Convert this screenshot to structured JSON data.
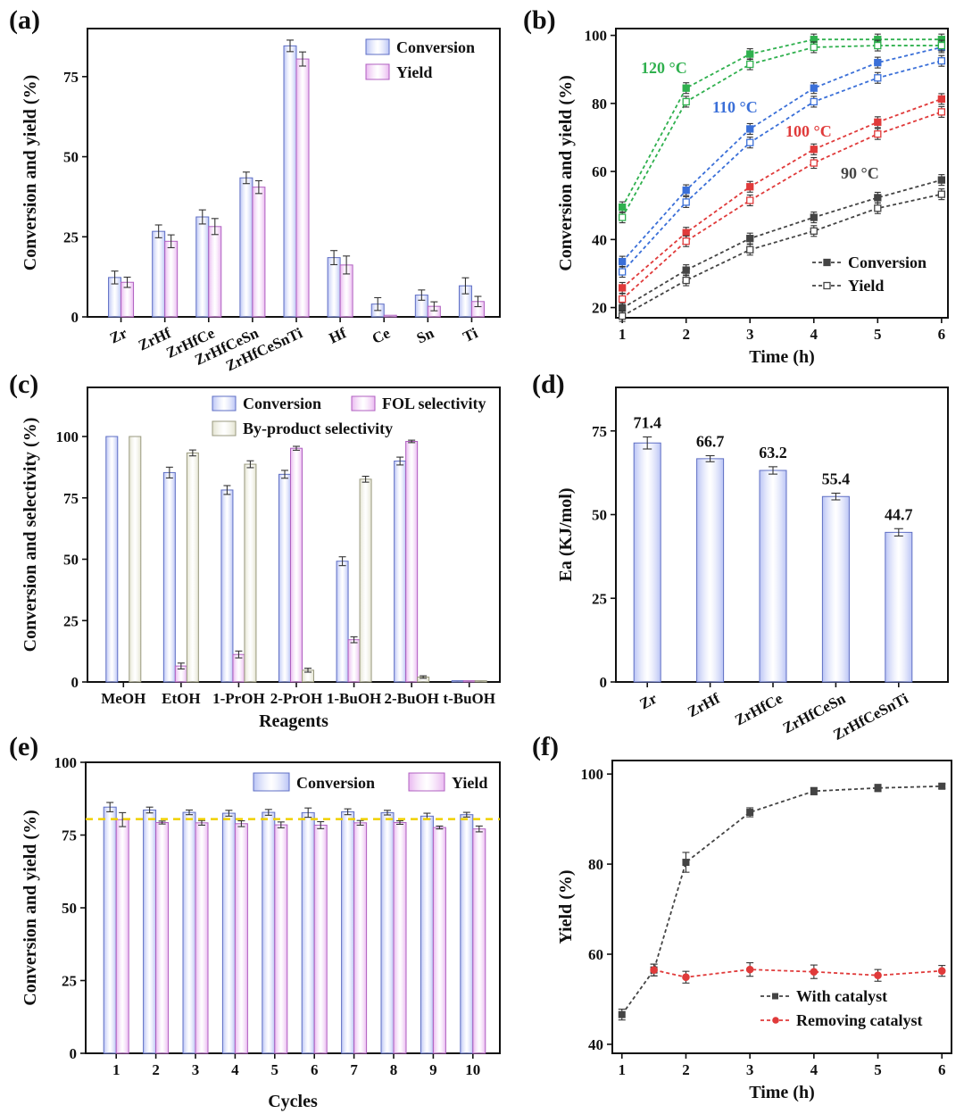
{
  "figure": {
    "panel_labels": [
      "(a)",
      "(b)",
      "(c)",
      "(d)",
      "(e)",
      "(f)"
    ],
    "colors": {
      "conversion_fill": "#b9c3f5",
      "conversion_stroke": "#5f6fc4",
      "yield_fill": "#e9b7f0",
      "yield_stroke": "#b060c0",
      "byproduct_fill": "#e3e3cf",
      "byproduct_stroke": "#9a9a80",
      "t90": "#444444",
      "t100": "#e03a3a",
      "t110": "#3a6fd8",
      "t120": "#2fb04e",
      "dashed_ref": "#f0d000"
    }
  },
  "chart_data": [
    {
      "panel": "(a)",
      "type": "bar",
      "categories": [
        "Zr",
        "ZrHf",
        "ZrHfCe",
        "ZrHfCeSn",
        "ZrHfCeSnTi",
        "Hf",
        "Ce",
        "Sn",
        "Ti"
      ],
      "series": [
        {
          "name": "Conversion",
          "values": [
            12.3,
            26.7,
            31.2,
            43.4,
            84.6,
            18.5,
            4.0,
            6.8,
            9.7
          ],
          "errors": [
            2.0,
            2.0,
            2.2,
            1.8,
            1.8,
            2.2,
            2.0,
            1.6,
            2.5
          ]
        },
        {
          "name": "Yield",
          "values": [
            10.8,
            23.6,
            28.2,
            40.5,
            80.5,
            16.2,
            0.5,
            3.3,
            4.8
          ],
          "errors": [
            1.6,
            2.0,
            2.5,
            2.0,
            2.2,
            2.8,
            0.0,
            1.4,
            1.6
          ]
        }
      ],
      "xlabel": "",
      "ylabel": "Conversion and yield (%)",
      "ylim": [
        0,
        90
      ],
      "yticks": [
        0,
        25,
        50,
        75
      ],
      "legend": "top-right"
    },
    {
      "panel": "(b)",
      "type": "line",
      "x": [
        1,
        2,
        3,
        4,
        5,
        6
      ],
      "series": [
        {
          "name": "90 °C Conversion",
          "temp": "90 °C",
          "values": [
            19.8,
            31.0,
            40.3,
            46.5,
            52.3,
            57.5
          ]
        },
        {
          "name": "90 °C Yield",
          "temp": "90 °C",
          "values": [
            17.5,
            28.0,
            37.0,
            42.5,
            49.2,
            53.3
          ]
        },
        {
          "name": "100 °C Conversion",
          "temp": "100 °C",
          "values": [
            25.8,
            42.0,
            55.5,
            66.5,
            74.5,
            81.3
          ]
        },
        {
          "name": "100 °C Yield",
          "temp": "100 °C",
          "values": [
            22.5,
            39.5,
            51.5,
            62.5,
            71.0,
            77.5
          ]
        },
        {
          "name": "110 °C Conversion",
          "temp": "110 °C",
          "values": [
            33.5,
            54.5,
            72.5,
            84.5,
            92.0,
            96.5
          ]
        },
        {
          "name": "110 °C Yield",
          "temp": "110 °C",
          "values": [
            30.5,
            51.0,
            68.5,
            80.5,
            87.5,
            92.5
          ]
        },
        {
          "name": "120 °C Conversion",
          "temp": "120 °C",
          "values": [
            49.5,
            84.5,
            94.5,
            98.8,
            98.8,
            98.8
          ]
        },
        {
          "name": "120 °C Yield",
          "temp": "120 °C",
          "values": [
            46.5,
            80.5,
            91.5,
            96.5,
            97.0,
            97.0
          ]
        }
      ],
      "temperature_labels": [
        "120 °C",
        "110 °C",
        "100 °C",
        "90 °C"
      ],
      "legend_entries": [
        "Conversion",
        "Yield"
      ],
      "xlabel": "Time (h)",
      "ylabel": "Conversion and yield (%)",
      "xlim": [
        0.9,
        6.1
      ],
      "ylim": [
        17,
        102
      ],
      "xticks": [
        1,
        2,
        3,
        4,
        5,
        6
      ],
      "yticks": [
        20,
        40,
        60,
        80,
        100
      ],
      "legend": "bottom-right"
    },
    {
      "panel": "(c)",
      "type": "bar",
      "categories": [
        "MeOH",
        "EtOH",
        "1-PrOH",
        "2-PrOH",
        "1-BuOH",
        "2-BuOH",
        "t-BuOH"
      ],
      "series": [
        {
          "name": "Conversion",
          "values": [
            100,
            85.3,
            78.2,
            84.6,
            49.2,
            90.0,
            0.5
          ],
          "errors": [
            0,
            2.2,
            1.8,
            1.6,
            1.8,
            1.6,
            0
          ]
        },
        {
          "name": "FOL selectivity",
          "values": [
            0,
            6.5,
            11.2,
            95.2,
            17.2,
            98.0,
            0.5
          ],
          "errors": [
            0,
            1.2,
            1.4,
            0.8,
            1.2,
            0.5,
            0
          ]
        },
        {
          "name": "By-product selectivity",
          "values": [
            100,
            93.3,
            88.7,
            4.8,
            82.6,
            2.0,
            0.5
          ],
          "errors": [
            0,
            1.2,
            1.4,
            0.8,
            1.2,
            0.5,
            0
          ]
        }
      ],
      "xlabel": "Reagents",
      "ylabel": "Conversion and selectivity (%)",
      "ylim": [
        0,
        120
      ],
      "yticks": [
        0,
        25,
        50,
        75,
        100
      ],
      "legend": "top"
    },
    {
      "panel": "(d)",
      "type": "bar",
      "categories": [
        "Zr",
        "ZrHf",
        "ZrHfCe",
        "ZrHfCeSn",
        "ZrHfCeSnTi"
      ],
      "values": [
        71.4,
        66.7,
        63.2,
        55.4,
        44.7
      ],
      "errors": [
        1.8,
        0.9,
        1.1,
        1.0,
        1.1
      ],
      "labels": [
        "71.4",
        "66.7",
        "63.2",
        "55.4",
        "44.7"
      ],
      "xlabel": "",
      "ylabel": "Ea (KJ/mol)",
      "ylim": [
        0,
        88
      ],
      "yticks": [
        0,
        25,
        50,
        75
      ]
    },
    {
      "panel": "(e)",
      "type": "bar",
      "categories": [
        "1",
        "2",
        "3",
        "4",
        "5",
        "6",
        "7",
        "8",
        "9",
        "10"
      ],
      "series": [
        {
          "name": "Conversion",
          "values": [
            84.6,
            83.6,
            82.8,
            82.5,
            82.8,
            82.7,
            83.0,
            82.7,
            81.5,
            82.0
          ],
          "errors": [
            1.6,
            1.0,
            0.8,
            1.0,
            1.0,
            1.6,
            1.0,
            0.8,
            1.0,
            0.8
          ]
        },
        {
          "name": "Yield",
          "values": [
            80.3,
            79.3,
            79.2,
            78.9,
            78.5,
            78.4,
            79.2,
            79.3,
            77.6,
            77.1
          ],
          "errors": [
            2.4,
            0.5,
            0.8,
            1.0,
            1.0,
            1.2,
            0.8,
            0.6,
            0.5,
            1.0
          ]
        }
      ],
      "reference_line": 80.5,
      "xlabel": "Cycles",
      "ylabel": "Conversion and yield (%)",
      "ylim": [
        0,
        100
      ],
      "yticks": [
        0,
        25,
        50,
        75,
        100
      ],
      "legend": "top"
    },
    {
      "panel": "(f)",
      "type": "line",
      "series": [
        {
          "name": "With catalyst",
          "x": [
            1,
            1.5,
            2,
            3,
            4,
            5,
            6
          ],
          "values": [
            46.6,
            56.5,
            80.4,
            91.5,
            96.2,
            96.9,
            97.3
          ],
          "errors": [
            1.2,
            1.3,
            2.2,
            1.0,
            0.8,
            0.8,
            0.5
          ]
        },
        {
          "name": "Removing catalyst",
          "x": [
            1.5,
            2,
            3,
            4,
            5,
            6
          ],
          "values": [
            56.5,
            54.9,
            56.6,
            56.1,
            55.3,
            56.3
          ],
          "errors": [
            1.3,
            1.3,
            1.5,
            1.5,
            1.3,
            1.2
          ]
        }
      ],
      "xlabel": "Time (h)",
      "ylabel": "Yield (%)",
      "xlim": [
        0.85,
        6.15
      ],
      "ylim": [
        38,
        103
      ],
      "xticks": [
        1,
        2,
        3,
        4,
        5,
        6
      ],
      "yticks": [
        40,
        60,
        80,
        100
      ],
      "legend": "bottom-right"
    }
  ]
}
